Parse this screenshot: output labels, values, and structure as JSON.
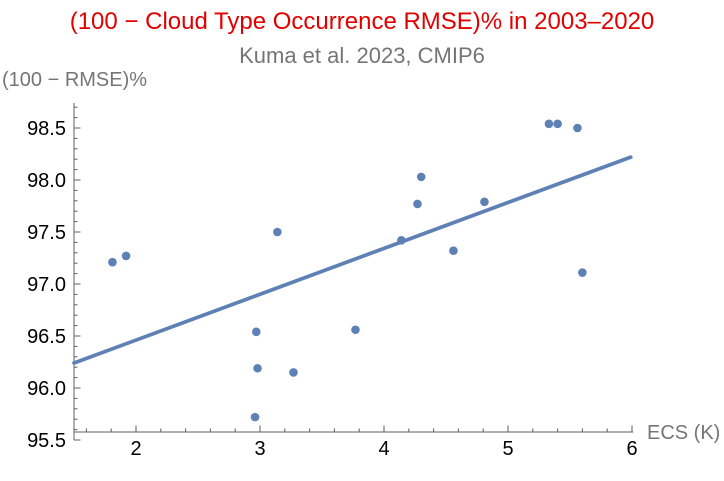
{
  "chart_data": {
    "type": "scatter",
    "title": "(100 − Cloud Type Occurrence RMSE)% in 2003–2020",
    "subtitle": "Kuma et al. 2023, CMIP6",
    "ylabel": "(100 − RMSE)%",
    "xlabel": "ECS (K)",
    "xlim": [
      1.5,
      6.01
    ],
    "ylim": [
      95.5,
      98.74
    ],
    "grid": false,
    "legend": null,
    "x_ticks": [
      2,
      3,
      4,
      5,
      6
    ],
    "x_tick_labels": [
      "2",
      "3",
      "4",
      "5",
      "6"
    ],
    "x_minor_step": 0.2,
    "y_ticks": [
      95.5,
      96.0,
      96.5,
      97.0,
      97.5,
      98.0,
      98.5
    ],
    "y_tick_labels": [
      "95.5",
      "96.0",
      "96.5",
      "97.0",
      "97.5",
      "98.0",
      "98.5"
    ],
    "y_minor_step": 0.1,
    "points": [
      [
        1.81,
        97.21
      ],
      [
        1.92,
        97.27
      ],
      [
        2.96,
        95.72
      ],
      [
        2.97,
        96.54
      ],
      [
        2.98,
        96.19
      ],
      [
        3.14,
        97.5
      ],
      [
        3.27,
        96.15
      ],
      [
        3.77,
        96.56
      ],
      [
        4.14,
        97.42
      ],
      [
        4.27,
        97.77
      ],
      [
        4.3,
        98.03
      ],
      [
        4.56,
        97.32
      ],
      [
        4.81,
        97.79
      ],
      [
        5.33,
        98.54
      ],
      [
        5.4,
        98.54
      ],
      [
        5.56,
        98.5
      ],
      [
        5.6,
        97.11
      ]
    ],
    "trend_line": {
      "x1": 1.5,
      "y1": 96.24,
      "x2": 5.99,
      "y2": 98.22
    },
    "title_color": "#e10000",
    "subtitle_color": "#757575",
    "axis_label_color": "#757575",
    "tick_label_color": "#000000",
    "axis_color": "#5f5f5f",
    "point_color": "#5e81b5",
    "line_color": "#5e81b5"
  }
}
